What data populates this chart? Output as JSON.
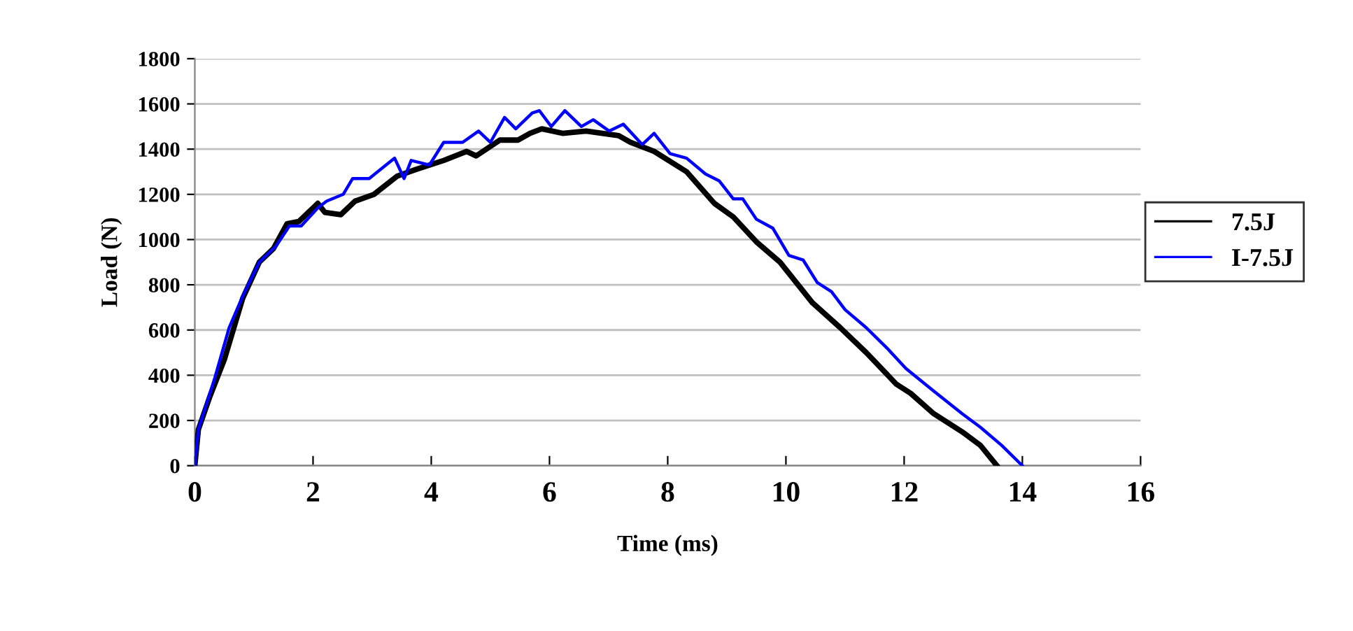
{
  "chart_data": {
    "type": "line",
    "xlabel": "Time (ms)",
    "ylabel": "Load (N)",
    "xlim": [
      0,
      16
    ],
    "xticks": [
      0,
      2,
      4,
      6,
      8,
      10,
      12,
      14,
      16
    ],
    "ylim": [
      0,
      1800
    ],
    "yticks": [
      0,
      200,
      400,
      600,
      800,
      1000,
      1200,
      1400,
      1600,
      1800
    ],
    "grid": "y",
    "legend": "right",
    "line_style": "solid",
    "marker": "none",
    "series": [
      {
        "name": "7.5J",
        "color": "#000000",
        "x": [
          0,
          0.06,
          0.26,
          0.5,
          0.81,
          1.09,
          1.33,
          1.56,
          1.76,
          2.08,
          2.2,
          2.47,
          2.71,
          3.03,
          3.42,
          3.74,
          4.21,
          4.6,
          4.76,
          5.16,
          5.47,
          5.67,
          5.87,
          6.22,
          6.62,
          7.17,
          7.37,
          7.77,
          8.32,
          8.79,
          9.11,
          9.5,
          9.9,
          10.45,
          10.92,
          11.36,
          11.87,
          12.11,
          12.5,
          12.98,
          13.29,
          13.57
        ],
        "values": [
          0,
          160,
          310,
          470,
          740,
          900,
          960,
          1070,
          1080,
          1160,
          1120,
          1110,
          1170,
          1200,
          1280,
          1310,
          1350,
          1390,
          1370,
          1440,
          1440,
          1470,
          1490,
          1470,
          1480,
          1460,
          1430,
          1390,
          1300,
          1160,
          1100,
          990,
          900,
          720,
          610,
          500,
          360,
          320,
          230,
          150,
          90,
          0
        ]
      },
      {
        "name": "I-7.5J",
        "color": "#0000ff",
        "x": [
          0,
          0.06,
          0.34,
          0.58,
          0.81,
          1.09,
          1.37,
          1.6,
          1.8,
          2.08,
          2.23,
          2.51,
          2.67,
          2.95,
          3.38,
          3.54,
          3.66,
          3.97,
          4.21,
          4.53,
          4.8,
          5.0,
          5.24,
          5.43,
          5.71,
          5.83,
          6.03,
          6.26,
          6.54,
          6.74,
          7.01,
          7.25,
          7.57,
          7.77,
          8.04,
          8.32,
          8.64,
          8.87,
          9.11,
          9.27,
          9.5,
          9.78,
          10.05,
          10.29,
          10.53,
          10.77,
          11.0,
          11.36,
          11.71,
          12.03,
          12.5,
          12.98,
          13.29,
          13.65,
          14.0
        ],
        "values": [
          0,
          160,
          390,
          610,
          750,
          900,
          970,
          1060,
          1060,
          1140,
          1170,
          1200,
          1270,
          1270,
          1360,
          1270,
          1350,
          1330,
          1430,
          1430,
          1480,
          1430,
          1540,
          1490,
          1560,
          1570,
          1500,
          1570,
          1500,
          1530,
          1480,
          1510,
          1420,
          1470,
          1380,
          1360,
          1290,
          1260,
          1180,
          1180,
          1090,
          1050,
          930,
          910,
          810,
          770,
          690,
          610,
          520,
          430,
          330,
          230,
          170,
          90,
          0
        ]
      }
    ]
  }
}
